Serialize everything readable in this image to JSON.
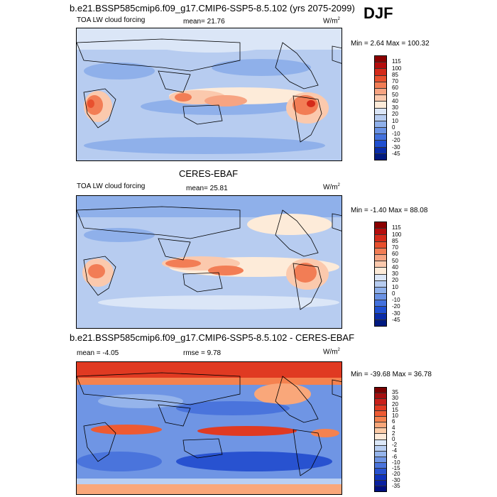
{
  "season": "DJF",
  "panels": [
    {
      "top_title": "b.e21.BSSP585cmip6.f09_g17.CMIP6-SSP5-8.5.102 (yrs 2075-2099)",
      "left_label": "TOA LW cloud forcing",
      "stat_label": "mean=",
      "stat_value": "21.76",
      "stat2_label": "",
      "stat2_value": "",
      "units": "W/m",
      "units_exp": "2",
      "minmax": "Min =   2.64 Max = 100.32",
      "levels": [
        "115",
        "100",
        "85",
        "70",
        "60",
        "50",
        "40",
        "30",
        "20",
        "10",
        "0",
        "-10",
        "-20",
        "-30",
        "-45"
      ],
      "colors": [
        "#8b0000",
        "#b40d0d",
        "#d42a1a",
        "#e8502e",
        "#f27d55",
        "#f7a482",
        "#fbc9ad",
        "#fdebd9",
        "#dbe6f7",
        "#b7ccf0",
        "#8fb0ea",
        "#6a92e4",
        "#4371dd",
        "#1f4fd0",
        "#0a2ca8",
        "#001a80"
      ]
    },
    {
      "top_title": "CERES-EBAF",
      "left_label": "TOA LW cloud forcing",
      "stat_label": "mean=",
      "stat_value": "25.81",
      "stat2_label": "",
      "stat2_value": "",
      "units": "W/m",
      "units_exp": "2",
      "minmax": "Min =  -1.40 Max =  88.08",
      "levels": [
        "115",
        "100",
        "85",
        "70",
        "60",
        "50",
        "40",
        "30",
        "20",
        "10",
        "0",
        "-10",
        "-20",
        "-30",
        "-45"
      ],
      "colors": [
        "#8b0000",
        "#b40d0d",
        "#d42a1a",
        "#e8502e",
        "#f27d55",
        "#f7a482",
        "#fbc9ad",
        "#fdebd9",
        "#dbe6f7",
        "#b7ccf0",
        "#8fb0ea",
        "#6a92e4",
        "#4371dd",
        "#1f4fd0",
        "#0a2ca8",
        "#001a80"
      ]
    },
    {
      "top_title": "b.e21.BSSP585cmip6.f09_g17.CMIP6-SSP5-8.5.102 - CERES-EBAF",
      "left_label": "",
      "stat_label": "mean =",
      "stat_value": "-4.05",
      "stat2_label": "rmse =",
      "stat2_value": "9.78",
      "units": "W/m",
      "units_exp": "2",
      "minmax": "Min = -39.68 Max =  36.78",
      "levels": [
        "35",
        "30",
        "20",
        "15",
        "10",
        "6",
        "4",
        "2",
        "0",
        "-2",
        "-4",
        "-6",
        "-10",
        "-15",
        "-20",
        "-30",
        "-35"
      ],
      "colors": [
        "#7a0000",
        "#a50f0f",
        "#c8201a",
        "#e03a22",
        "#ee5a32",
        "#f5824f",
        "#f9a77a",
        "#fccba7",
        "#fde9d8",
        "#dce8f8",
        "#b9cff2",
        "#95b4eb",
        "#6f95e4",
        "#4a74dc",
        "#2852d0",
        "#0f33bd",
        "#0a21a0",
        "#001080"
      ]
    }
  ]
}
